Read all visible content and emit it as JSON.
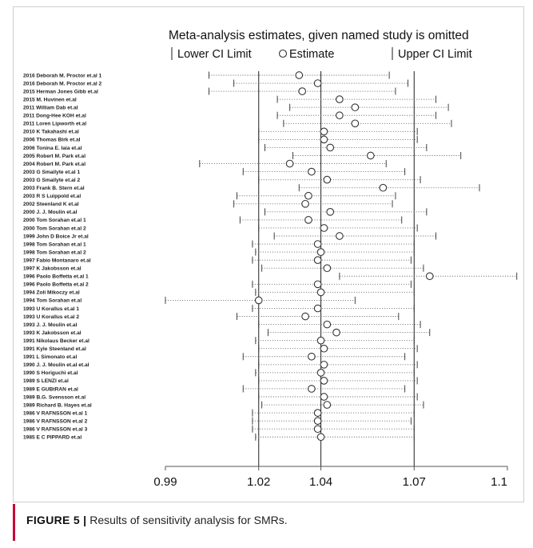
{
  "caption": {
    "label": "FIGURE 5 |",
    "text": " Results of sensitivity analysis for SMRs."
  },
  "chart_data": {
    "type": "forest",
    "title": "Meta-analysis estimates, given named study is omitted",
    "legend": {
      "lower": "Lower CI Limit",
      "estimate": "Estimate",
      "upper": "Upper CI Limit"
    },
    "xaxis": {
      "ticks": [
        0.99,
        1.02,
        1.04,
        1.07,
        1.1
      ],
      "tick_labels": [
        "0.99",
        "1.02",
        "1.04",
        "1.07",
        "1.1"
      ],
      "reference_lines": [
        1.02,
        1.04,
        1.07
      ]
    },
    "studies": [
      {
        "label": "2016 Deborah M. Proctor et.al 1",
        "lower": 1.004,
        "estimate": 1.033,
        "upper": 1.062
      },
      {
        "label": "2016 Deborah M. Proctor et.al 2",
        "lower": 1.012,
        "estimate": 1.039,
        "upper": 1.068
      },
      {
        "label": "2015 Herman Jones Gibb et.al",
        "lower": 1.004,
        "estimate": 1.034,
        "upper": 1.064
      },
      {
        "label": "2015 M. Huvinen et.al",
        "lower": 1.026,
        "estimate": 1.046,
        "upper": 1.077
      },
      {
        "label": "2011 William Dab et.al",
        "lower": 1.03,
        "estimate": 1.051,
        "upper": 1.081
      },
      {
        "label": "2011 Dong-Hee KOH et.al",
        "lower": 1.026,
        "estimate": 1.046,
        "upper": 1.077
      },
      {
        "label": "2011 Loren Lipworth et.al",
        "lower": 1.028,
        "estimate": 1.051,
        "upper": 1.082
      },
      {
        "label": "2010 K Takahashi et.al",
        "lower": 1.02,
        "estimate": 1.041,
        "upper": 1.071
      },
      {
        "label": "2006 Thomas Birk et.al",
        "lower": 1.02,
        "estimate": 1.041,
        "upper": 1.071
      },
      {
        "label": "2006 Tonina E. Iaia et.al",
        "lower": 1.022,
        "estimate": 1.043,
        "upper": 1.074
      },
      {
        "label": "2005 Robert M. Park et.al",
        "lower": 1.031,
        "estimate": 1.056,
        "upper": 1.085
      },
      {
        "label": "2004 Robert M. Park et.al",
        "lower": 1.001,
        "estimate": 1.03,
        "upper": 1.061
      },
      {
        "label": "2003 G Smailyte et.al 1",
        "lower": 1.015,
        "estimate": 1.037,
        "upper": 1.067
      },
      {
        "label": "2003 G Smailyte et.al 2",
        "lower": 1.02,
        "estimate": 1.042,
        "upper": 1.072
      },
      {
        "label": "2003 Frank B. Stern et.al",
        "lower": 1.033,
        "estimate": 1.06,
        "upper": 1.091
      },
      {
        "label": "2003 R S Luippold et.al",
        "lower": 1.013,
        "estimate": 1.036,
        "upper": 1.064
      },
      {
        "label": "2002 Steenland K et.al",
        "lower": 1.012,
        "estimate": 1.035,
        "upper": 1.063
      },
      {
        "label": "2000 J. J. Moulin et.al",
        "lower": 1.022,
        "estimate": 1.043,
        "upper": 1.074
      },
      {
        "label": "2000 Tom Sorahan et.al 1",
        "lower": 1.014,
        "estimate": 1.036,
        "upper": 1.066
      },
      {
        "label": "2000 Tom Sorahan et.al 2",
        "lower": 1.02,
        "estimate": 1.041,
        "upper": 1.071
      },
      {
        "label": "1999 John D Boice Jr et.al",
        "lower": 1.025,
        "estimate": 1.046,
        "upper": 1.077
      },
      {
        "label": "1998 Tom Sorahan et.al 1",
        "lower": 1.018,
        "estimate": 1.039,
        "upper": 1.07
      },
      {
        "label": "1998 Tom Sorahan et.al 2",
        "lower": 1.019,
        "estimate": 1.04,
        "upper": 1.07
      },
      {
        "label": "1997 Fabio Montanaro et.al",
        "lower": 1.018,
        "estimate": 1.039,
        "upper": 1.069
      },
      {
        "label": "1997 K Jakobsson et.al",
        "lower": 1.021,
        "estimate": 1.042,
        "upper": 1.073
      },
      {
        "label": "1996 Paolo Boffetta et.al 1",
        "lower": 1.046,
        "estimate": 1.075,
        "upper": 1.103
      },
      {
        "label": "1996 Paolo Boffetta et.al 2",
        "lower": 1.018,
        "estimate": 1.039,
        "upper": 1.069
      },
      {
        "label": "1994 Zoli Mikoczy et.al",
        "lower": 1.019,
        "estimate": 1.04,
        "upper": 1.07
      },
      {
        "label": "1994 Tom Sorahan et.al",
        "lower": 0.99,
        "estimate": 1.02,
        "upper": 1.051
      },
      {
        "label": "1993 U Korallus et.al 1",
        "lower": 1.018,
        "estimate": 1.039,
        "upper": 1.07
      },
      {
        "label": "1993 U Korallus et.al 2",
        "lower": 1.013,
        "estimate": 1.035,
        "upper": 1.065
      },
      {
        "label": "1993 J. J. Moulin et.al",
        "lower": 1.02,
        "estimate": 1.042,
        "upper": 1.072
      },
      {
        "label": "1993 K Jakobsson et.al",
        "lower": 1.023,
        "estimate": 1.045,
        "upper": 1.075
      },
      {
        "label": "1991 Nikolaus Becker et.al",
        "lower": 1.019,
        "estimate": 1.04,
        "upper": 1.07
      },
      {
        "label": "1991 Kyle Steenland et.al",
        "lower": 1.02,
        "estimate": 1.041,
        "upper": 1.071
      },
      {
        "label": "1991 L Simonato et.al",
        "lower": 1.015,
        "estimate": 1.037,
        "upper": 1.067
      },
      {
        "label": "1990 J. J. Moulin et.al et.al",
        "lower": 1.02,
        "estimate": 1.041,
        "upper": 1.071
      },
      {
        "label": "1990 S  Horiguchi et.al",
        "lower": 1.019,
        "estimate": 1.04,
        "upper": 1.07
      },
      {
        "label": "1989 S LENZI et.al",
        "lower": 1.02,
        "estimate": 1.041,
        "upper": 1.071
      },
      {
        "label": "1989 E GUBtRAN et.al",
        "lower": 1.015,
        "estimate": 1.037,
        "upper": 1.067
      },
      {
        "label": "1989 B.G. Svensson et.al",
        "lower": 1.02,
        "estimate": 1.041,
        "upper": 1.071
      },
      {
        "label": "1989 Richard B. Hayes et.al",
        "lower": 1.021,
        "estimate": 1.042,
        "upper": 1.073
      },
      {
        "label": "1986 V RAFNSSON et.al 1",
        "lower": 1.018,
        "estimate": 1.039,
        "upper": 1.07
      },
      {
        "label": "1986 V RAFNSSON et.al 2",
        "lower": 1.018,
        "estimate": 1.039,
        "upper": 1.069
      },
      {
        "label": "1986 V RAFNSSON et.al 3",
        "lower": 1.018,
        "estimate": 1.039,
        "upper": 1.07
      },
      {
        "label": "1985 E C PIPPARD et.al",
        "lower": 1.019,
        "estimate": 1.04,
        "upper": 1.07
      }
    ]
  }
}
